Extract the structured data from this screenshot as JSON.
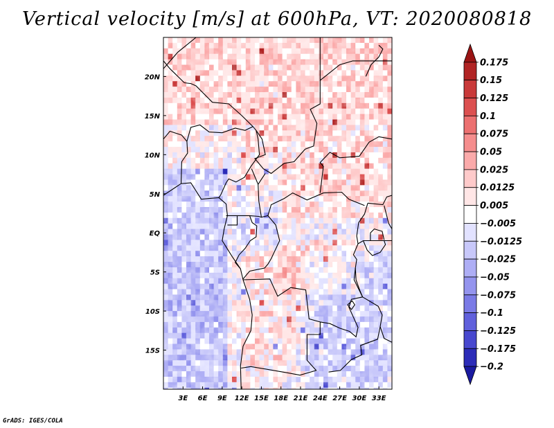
{
  "title": "Vertical velocity [m/s] at 600hPa, VT: 2020080818",
  "credit": "GrADS: IGES/COLA",
  "colors": {
    "positive_shades": [
      "#ffe6e6",
      "#fecaca",
      "#fbaaaa",
      "#f58d8d",
      "#ec7070",
      "#dc5050",
      "#c93a3a",
      "#b12424",
      "#9a1414",
      "#c83232"
    ],
    "negative_shades": [
      "#e2e2ff",
      "#c8c8fa",
      "#aeaef5",
      "#9494ee",
      "#7a7ae6",
      "#6060dc",
      "#4848cf",
      "#2c2cb8",
      "#1a1aa0",
      "#2a1aa0"
    ],
    "neutral": "#ffffff",
    "boundary": "#000000"
  },
  "chart_data": {
    "type": "heatmap",
    "title": "Vertical velocity [m/s] at 600hPa, VT: 2020080818",
    "variable": "Vertical velocity",
    "units": "m/s",
    "level": "600hPa",
    "valid_time": "2020080818",
    "x_axis": {
      "ticks": [
        3,
        6,
        9,
        12,
        15,
        18,
        21,
        24,
        27,
        30,
        33
      ],
      "tick_labels": [
        "3E",
        "6E",
        "9E",
        "12E",
        "15E",
        "18E",
        "21E",
        "24E",
        "27E",
        "30E",
        "33E"
      ],
      "range": [
        0,
        35
      ]
    },
    "y_axis": {
      "ticks": [
        20,
        15,
        10,
        5,
        0,
        -5,
        -10,
        -15
      ],
      "tick_labels": [
        "20N",
        "15N",
        "10N",
        "5N",
        "EQ",
        "5S",
        "10S",
        "15S"
      ],
      "range": [
        -20,
        25
      ]
    },
    "colorbar": {
      "levels": [
        0.175,
        0.15,
        0.125,
        0.1,
        0.075,
        0.05,
        0.025,
        0.0125,
        0.005,
        -0.005,
        -0.0125,
        -0.025,
        -0.05,
        -0.075,
        -0.1,
        -0.125,
        -0.175,
        -0.2
      ],
      "labels": [
        "0.175",
        "0.15",
        "0.125",
        "0.1",
        "0.075",
        "0.05",
        "0.025",
        "0.0125",
        "0.005",
        "−0.005",
        "−0.0125",
        "−0.025",
        "−0.05",
        "−0.075",
        "−0.1",
        "−0.125",
        "−0.175",
        "−0.2"
      ]
    }
  }
}
